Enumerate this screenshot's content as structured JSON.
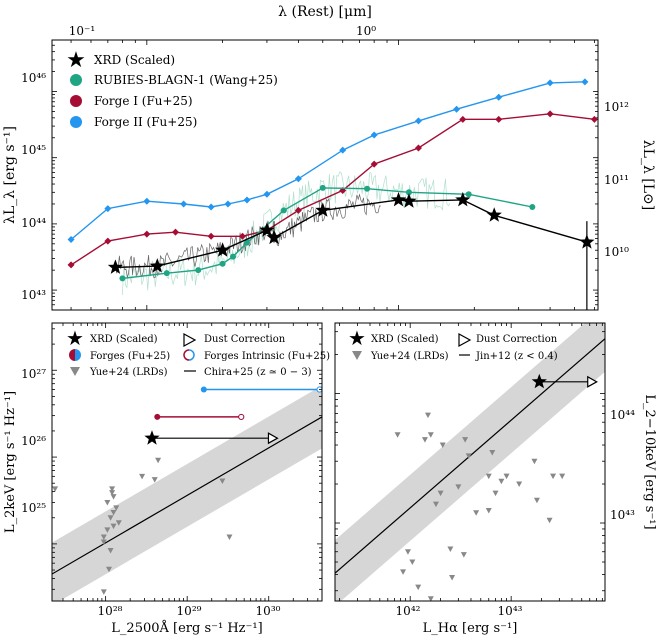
{
  "colors": {
    "xrd": "#000000",
    "rubies": "#1fa484",
    "forge1": "#a50d35",
    "forge2": "#2496ef",
    "yue": "#888888",
    "band": "#d6d6d6",
    "spectrum": "#555555",
    "spectrum_light": "#a8dcc6"
  },
  "chart_data": [
    {
      "type": "line",
      "panel": "top",
      "title": "",
      "top_xlabel": "λ (Rest) [μm]",
      "top_ticks": [
        "10⁻¹",
        "10⁰"
      ],
      "xlim": [
        0.042,
        6.2
      ],
      "ylabel_left": "λL_λ [erg s⁻¹]",
      "ylabel_right": "λL_λ [L⊙]",
      "ylim": [
        5e+42,
        6e+46
      ],
      "yticks_left": [
        "10⁴³",
        "10⁴⁴",
        "10⁴⁵",
        "10⁴⁶"
      ],
      "yticks_right": [
        "10¹⁰",
        "10¹¹",
        "10¹²"
      ],
      "legend": {
        "position": "top-left",
        "entries": [
          "XRD (Scaled)",
          "RUBIES-BLAGN-1 (Wang+25)",
          "Forge I (Fu+25)",
          "Forge II (Fu+25)"
        ]
      },
      "series": [
        {
          "name": "Forge II (Fu+25)",
          "x": [
            0.05,
            0.07,
            0.1,
            0.14,
            0.18,
            0.21,
            0.25,
            0.3,
            0.4,
            0.6,
            0.8,
            1.2,
            1.7,
            2.5,
            4.0,
            5.5
          ],
          "y": [
            5.8e+43,
            1.7e+44,
            2.2e+44,
            2e+44,
            1.8e+44,
            2e+44,
            2.3e+44,
            2.8e+44,
            4.8e+44,
            1.3e+45,
            2.2e+45,
            3.6e+45,
            5.4e+45,
            8.2e+45,
            1.35e+46,
            1.4e+46
          ]
        },
        {
          "name": "Forge I (Fu+25)",
          "x": [
            0.05,
            0.07,
            0.1,
            0.13,
            0.18,
            0.24,
            0.3,
            0.4,
            0.6,
            0.8,
            1.2,
            1.8,
            2.5,
            4.0,
            6.0
          ],
          "y": [
            2.4e+43,
            5.5e+43,
            7e+43,
            7.5e+43,
            6.5e+43,
            6.5e+43,
            8e+43,
            1.6e+44,
            3.2e+44,
            8e+44,
            1.4e+45,
            3.8e+45,
            3.8e+45,
            4.6e+45,
            3.8e+45
          ]
        },
        {
          "name": "RUBIES-BLAGN-1 (Wang+25)",
          "x": [
            0.08,
            0.12,
            0.16,
            0.2,
            0.22,
            0.25,
            0.35,
            0.5,
            0.75,
            1.1,
            1.9,
            3.4
          ],
          "y": [
            1.5e+43,
            1.8e+43,
            2e+43,
            2.5e+43,
            3.2e+43,
            5.2e+43,
            1.6e+44,
            3.5e+44,
            3.4e+44,
            3e+44,
            2.8e+44,
            1.8e+44
          ]
        },
        {
          "name": "XRD (Scaled)",
          "x": [
            0.075,
            0.11,
            0.2,
            0.3,
            0.32,
            0.5,
            1.0,
            1.1,
            1.8,
            2.4,
            5.6
          ],
          "y": [
            2.2e+43,
            2.3e+43,
            4e+43,
            8e+43,
            6.2e+43,
            1.6e+44,
            2.3e+44,
            2.2e+44,
            2.3e+44,
            1.35e+44,
            5.3e+43
          ]
        }
      ]
    },
    {
      "type": "scatter",
      "panel": "bottom-left",
      "xlabel": "L_2500Å [erg s⁻¹ Hz⁻¹]",
      "ylabel": "L_2keV [erg s⁻¹ Hz⁻¹]",
      "xlim": [
        2.2e+27,
        4.5e+30
      ],
      "ylim": [
        2.2e+24,
        3.5e+27
      ],
      "xticks": [
        "10²⁸",
        "10²⁹",
        "10³⁰"
      ],
      "yticks": [
        "10²⁵",
        "10²⁶",
        "10²⁷"
      ],
      "legend": {
        "position": "top",
        "entries": [
          "XRD (Scaled)",
          "Dust Correction",
          "Forges (Fu+25)",
          "Forges Intrinsic (Fu+25)",
          "Yue+24 (LRDs)",
          "Chira+25 (z ≃ 0 − 3)"
        ]
      },
      "relation": {
        "name": "Chira+25 (z ≃ 0 − 3)",
        "x": [
          2.2e+27,
          4.5e+30
        ],
        "y": [
          4.5e+24,
          2.9e+26
        ],
        "band_factor": 2.3
      },
      "xrd_point": {
        "x": 3.7e+28,
        "y": 1.65e+26,
        "dust_corrected_x": 1.05e+30
      },
      "forge_segments": [
        {
          "name": "Forge I",
          "x": [
            4.3e+28,
            4.6e+29
          ],
          "y": [
            2.9e+26,
            2.9e+26
          ]
        },
        {
          "name": "Forge II",
          "x": [
            1.6e+29,
            4.2e+30
          ],
          "y": [
            6e+26,
            6e+26
          ]
        }
      ],
      "yue_points": {
        "x": [
          4.4e+28,
          2.8e+28,
          1.2e+28,
          1.05e+28,
          1.35e+28,
          1.25e+28,
          1.15e+28,
          1.45e+28,
          1.25e+28,
          1.05e+28,
          9.5e+27,
          9.5e+27,
          1.15e+28,
          4e+28,
          1.2e+28,
          2.7e+29,
          3.3e+29,
          2.4e+27,
          1.25e+28,
          1.1e+28,
          9.5e+27
        ],
        "y": [
          9.2e+25,
          6e+25,
          4.3e+25,
          3e+25,
          2.6e+25,
          2.3e+25,
          2e+25,
          1.75e+25,
          1.6e+25,
          1.45e+25,
          1.2e+25,
          1.05e+25,
          8.4e+24,
          5.5e+25,
          3.9e+25,
          5.3e+25,
          1.2e+25,
          4.3e+25,
          3.5e+25,
          5.1e+24,
          2.8e+24
        ]
      }
    },
    {
      "type": "scatter",
      "panel": "bottom-right",
      "xlabel": "L_Hα [erg s⁻¹]",
      "ylabel": "L_2−10keV [erg s⁻¹]",
      "xlim": [
        1.8e+41,
        8.5e+43
      ],
      "ylim": [
        2.5e+42,
        3.5e+44
      ],
      "xticks": [
        "10⁴²",
        "10⁴³"
      ],
      "yticks": [
        "10⁴³",
        "10⁴⁴"
      ],
      "legend": {
        "position": "top",
        "entries": [
          "XRD (Scaled)",
          "Dust Correction",
          "Yue+24 (LRDs)",
          "Jin+12 (z < 0.4)"
        ]
      },
      "relation": {
        "name": "Jin+12 (z < 0.4)",
        "x": [
          1.8e+41,
          8.5e+43
        ],
        "y": [
          4.1e+42,
          2.65e+44
        ],
        "band_factor": 1.8
      },
      "xrd_point": {
        "x": 1.9e+43,
        "y": 1.23e+44,
        "dust_corrected_x": 6e+43
      },
      "yue_points": {
        "x": [
          7.5e+41,
          1.5e+42,
          1.6e+42,
          3.5e+42,
          1.4e+42,
          3.8e+42,
          6.5e+42,
          6e+42,
          9e+42,
          2.6e+43,
          8e+42,
          1.2e+43,
          3e+42,
          2e+42,
          7e+42,
          1.8e+43,
          1.8e+42,
          4.5e+42,
          2.4e+43,
          3.2e+43,
          1.7e+43,
          6e+42,
          2.5e+42,
          3.4e+42,
          9.5e+41,
          1.05e+42,
          8.5e+41,
          2.6e+42,
          1.2e+42,
          1.6e+42,
          2.1e+42
        ],
        "y": [
          4.8e+43,
          6.8e+43,
          4.8e+43,
          4.4e+43,
          4.4e+43,
          3.3e+43,
          3.5e+43,
          2.3e+43,
          2.3e+43,
          2.3e+43,
          2.1e+43,
          2e+43,
          1.9e+43,
          1.7e+43,
          1.7e+43,
          1.5e+43,
          1.4e+43,
          1.2e+43,
          1.05e+43,
          2.3e+43,
          3e+43,
          1.25e+43,
          6.3e+42,
          5.7e+42,
          6e+42,
          5e+42,
          4.2e+42,
          3.8e+42,
          3.2e+42,
          2.6e+42,
          4e+43
        ]
      }
    }
  ]
}
